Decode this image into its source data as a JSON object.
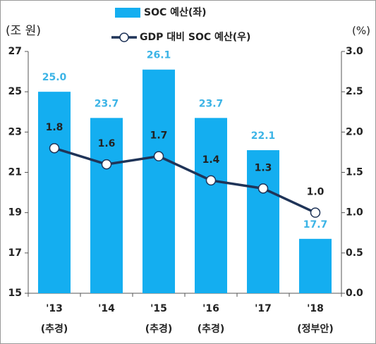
{
  "chart_data": {
    "type": "bar",
    "y_label": "(조 원)",
    "y2_label": "(%)",
    "categories": [
      "'13",
      "'14",
      "'15",
      "'16",
      "'17",
      "'18"
    ],
    "category_notes": [
      "(추경)",
      null,
      "(추경)",
      "(추경)",
      null,
      "(정부안)"
    ],
    "series": [
      {
        "name": "SOC 예산(좌)",
        "type": "bar",
        "color": "#14aef0",
        "label_color": "#3cb4e6",
        "values": [
          25.0,
          23.7,
          26.1,
          23.7,
          22.1,
          17.7
        ],
        "value_labels": [
          "25.0",
          "23.7",
          "26.1",
          "23.7",
          "22.1",
          "17.7"
        ]
      },
      {
        "name": "GDP 대비 SOC 예산(우)",
        "type": "line",
        "axis": "y2",
        "color": "#1f3458",
        "values": [
          1.8,
          1.6,
          1.7,
          1.4,
          1.3,
          1.0
        ],
        "value_labels": [
          "1.8",
          "1.6",
          "1.7",
          "1.4",
          "1.3",
          "1.0"
        ]
      }
    ],
    "ylim": [
      15,
      27
    ],
    "yticks": [
      15,
      17,
      19,
      21,
      23,
      25,
      27
    ],
    "y2lim": [
      0,
      3
    ],
    "y2ticks": [
      {
        "value": 0,
        "label": "0.0"
      },
      {
        "value": 0.5,
        "label": "0.5"
      },
      {
        "value": 1,
        "label": "1.0"
      },
      {
        "value": 1.5,
        "label": "1.5"
      },
      {
        "value": 2,
        "label": "2.0"
      },
      {
        "value": 2.5,
        "label": "2.5"
      },
      {
        "value": 3,
        "label": "3.0"
      }
    ],
    "grid": false
  }
}
